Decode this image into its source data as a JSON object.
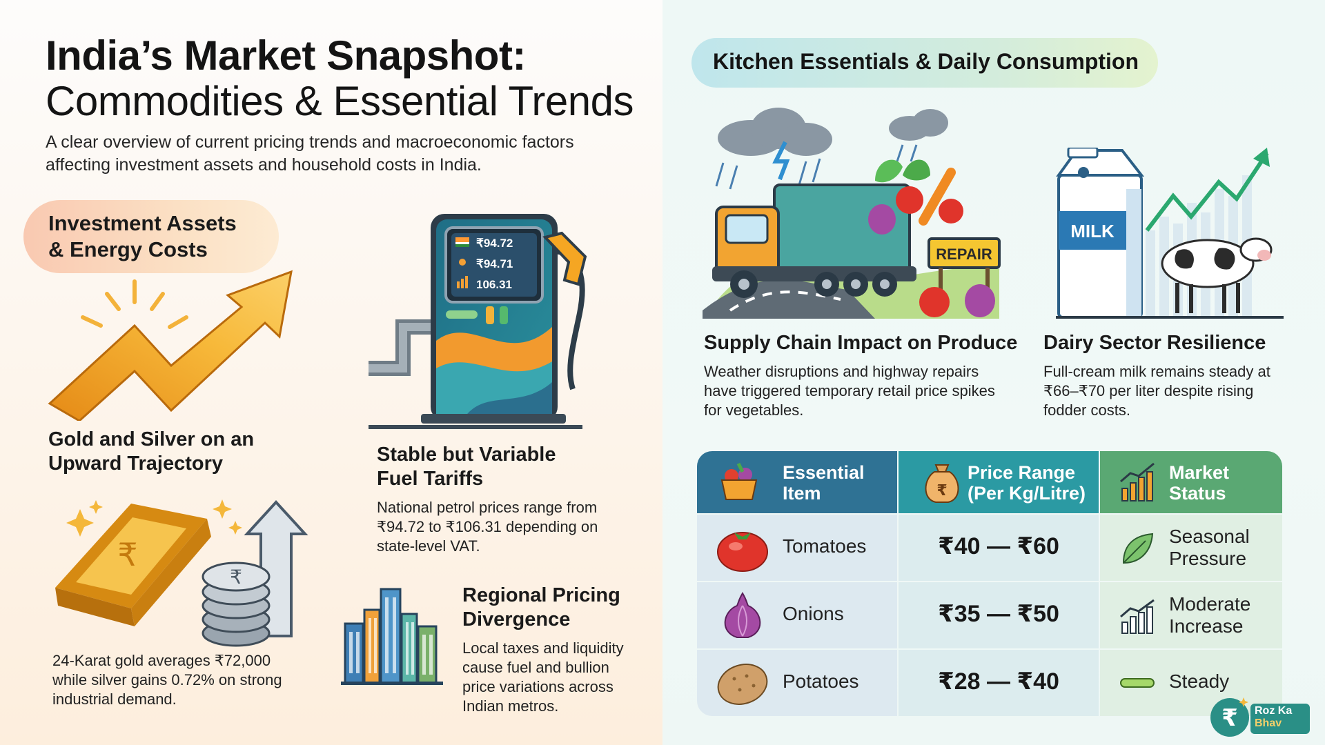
{
  "header": {
    "title_line1": "India’s Market Snapshot:",
    "title_line2": "Commodities & Essential Trends",
    "intro_line1": "A clear overview of current pricing trends and macroeconomic factors",
    "intro_line2": "affecting investment assets and household costs in India."
  },
  "left_section": {
    "pill_line1": "Investment Assets",
    "pill_line2": "& Energy Costs",
    "gold": {
      "heading_line1": "Gold and Silver on an",
      "heading_line2": "Upward Trajectory",
      "body_line1": "24-Karat gold averages ₹72,000",
      "body_line2": "while silver gains 0.72% on strong",
      "body_line3": "industrial demand."
    },
    "fuel": {
      "pump_price1": "₹94.72",
      "pump_price2": "₹94.71",
      "pump_price3": "106.31",
      "heading_line1": "Stable but Variable",
      "heading_line2": "Fuel Tariffs",
      "body_line1": "National petrol prices range from",
      "body_line2": "₹94.72 to ₹106.31 depending on",
      "body_line3": "state-level VAT."
    },
    "regional": {
      "heading_line1": "Regional Pricing",
      "heading_line2": "Divergence",
      "body_line1": "Local taxes and liquidity",
      "body_line2": "cause fuel and bullion",
      "body_line3": "price variations across",
      "body_line4": "Indian metros."
    }
  },
  "right_section": {
    "pill": "Kitchen Essentials & Daily Consumption",
    "supply": {
      "sign": "REPAIR",
      "heading": "Supply Chain Impact on Produce",
      "body_line1": "Weather disruptions and highway repairs",
      "body_line2": "have triggered temporary retail price spikes",
      "body_line3": "for vegetables."
    },
    "dairy": {
      "carton_label": "MILK",
      "heading": "Dairy Sector Resilience",
      "body_line1": "Full-cream milk remains steady at",
      "body_line2": "₹66–₹70 per liter despite rising",
      "body_line3": "fodder costs."
    }
  },
  "table": {
    "headers": {
      "item_line1": "Essential",
      "item_line2": "Item",
      "price_line1": "Price Range",
      "price_line2": "(Per Kg/Litre)",
      "status_line1": "Market",
      "status_line2": "Status"
    },
    "rows": [
      {
        "item": "Tomatoes",
        "price": "₹40 — ₹60",
        "status_line1": "Seasonal",
        "status_line2": "Pressure",
        "icon": "tomato-icon",
        "status_icon": "leaf-icon"
      },
      {
        "item": "Onions",
        "price": "₹35 — ₹50",
        "status_line1": "Moderate",
        "status_line2": "Increase",
        "icon": "onion-icon",
        "status_icon": "bar-chart-up-icon"
      },
      {
        "item": "Potatoes",
        "price": "₹28 — ₹40",
        "status_line1": "Steady",
        "status_line2": "",
        "icon": "potato-icon",
        "status_icon": "flat-line-icon"
      }
    ]
  },
  "logo": {
    "line1": "Roz Ka",
    "line2": "Bhav"
  },
  "colors": {
    "header_item": "#2f7294",
    "header_price": "#2b9aa3",
    "header_status": "#5aa873",
    "accent_gold": "#f0a92a"
  }
}
